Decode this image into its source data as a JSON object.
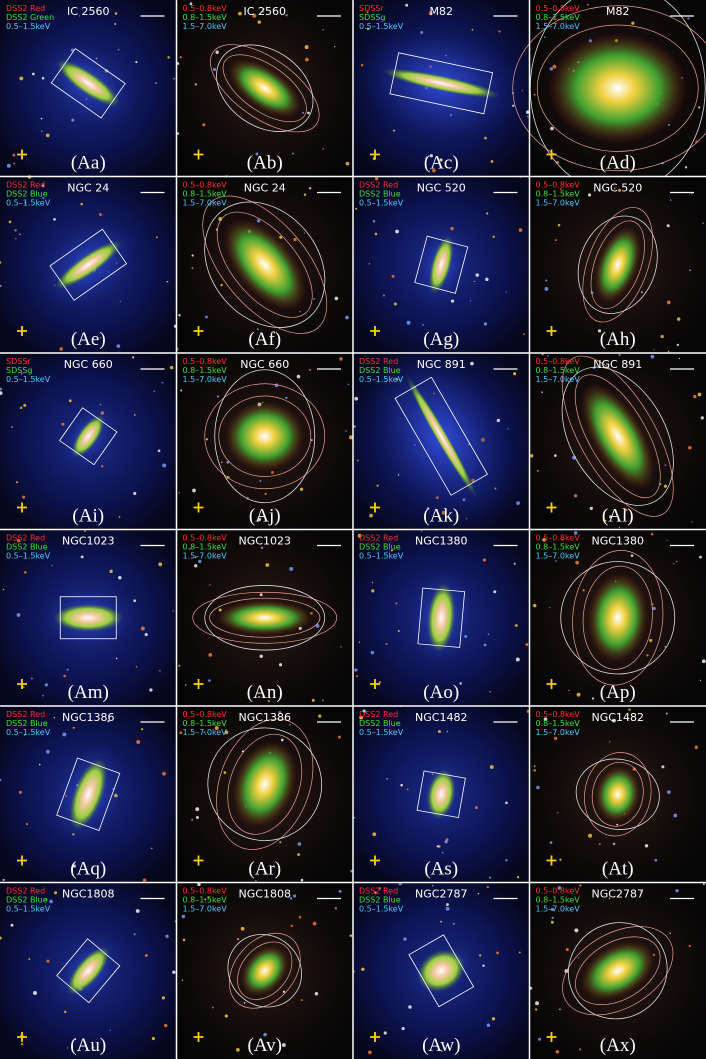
{
  "panels": [
    {
      "name": "IC 2560",
      "legend": [
        "DSS2 Red",
        "DSS2 Green",
        "0.5–1.5keV"
      ],
      "label": "(Aa)"
    },
    {
      "name": "IC 2560",
      "legend": [
        "0.5–0.8keV",
        "0.8–1.5keV",
        "1.5–7.0keV"
      ],
      "label": "(Ab)"
    },
    {
      "name": "M82",
      "legend": [
        "SDSSr",
        "SDSSg",
        "0.5–1.5keV"
      ],
      "label": "(Ac)"
    },
    {
      "name": "M82",
      "legend": [
        "0.5–0.8keV",
        "0.8–1.5keV",
        "1.5–7.0keV"
      ],
      "label": "(Ad)"
    },
    {
      "name": "NGC 24",
      "legend": [
        "DSS2 Red",
        "DSS2 Blue",
        "0.5–1.5keV"
      ],
      "label": "(Ae)"
    },
    {
      "name": "NGC 24",
      "legend": [
        "0.5–0.8keV",
        "0.8–1.5keV",
        "1.5–7.0keV"
      ],
      "label": "(Af)"
    },
    {
      "name": "NGC 520",
      "legend": [
        "DSS2 Red",
        "DSS2 Blue",
        "0.5–1.5keV"
      ],
      "label": "(Ag)"
    },
    {
      "name": "NGC 520",
      "legend": [
        "0.5–0.8keV",
        "0.8–1.5keV",
        "1.5–7.0keV"
      ],
      "label": "(Ah)"
    },
    {
      "name": "NGC 660",
      "legend": [
        "SDSSr",
        "SDSSg",
        "0.5–1.5keV"
      ],
      "label": "(Ai)"
    },
    {
      "name": "NGC 660",
      "legend": [
        "0.5–0.8keV",
        "0.8–1.5keV",
        "1.5–7.0keV"
      ],
      "label": "(Aj)"
    },
    {
      "name": "NGC 891",
      "legend": [
        "DSS2 Red",
        "DSS2 Blue",
        "0.5–1.5keV"
      ],
      "label": "(Ak)"
    },
    {
      "name": "NGC 891",
      "legend": [
        "0.5–0.8keV",
        "0.8–1.5keV",
        "1.5–7.0keV"
      ],
      "label": "(Al)"
    },
    {
      "name": "NGC1023",
      "legend": [
        "DSS2 Red",
        "DSS2 Blue",
        "0.5–1.5keV"
      ],
      "label": "(Am)"
    },
    {
      "name": "NGC1023",
      "legend": [
        "0.5–0.8keV",
        "0.8–1.5keV",
        "1.5–7.0keV"
      ],
      "label": "(An)"
    },
    {
      "name": "NGC1380",
      "legend": [
        "DSS2 Red",
        "DSS2 Blue",
        "0.5–1.5keV"
      ],
      "label": "(Ao)"
    },
    {
      "name": "NGC1380",
      "legend": [
        "0.5–0.8keV",
        "0.8–1.5keV",
        "1.5–7.0keV"
      ],
      "label": "(Ap)"
    },
    {
      "name": "NGC1386",
      "legend": [
        "DSS2 Red",
        "DSS2 Blue",
        "0.5–1.5keV"
      ],
      "label": "(Aq)"
    },
    {
      "name": "NGC1386",
      "legend": [
        "0.5–0.8keV",
        "0.8–1.5keV",
        "1.5–7.0keV"
      ],
      "label": "(Ar)"
    },
    {
      "name": "NGC1482",
      "legend": [
        "DSS2 Red",
        "DSS2 Blue",
        "0.5–1.5keV"
      ],
      "label": "(As)"
    },
    {
      "name": "NGC1482",
      "legend": [
        "0.5–0.8keV",
        "0.8–1.5keV",
        "1.5–7.0keV"
      ],
      "label": "(At)"
    },
    {
      "name": "NGC1808",
      "legend": [
        "DSS2 Red",
        "DSS2 Blue",
        "0.5–1.5keV"
      ],
      "label": "(Au)"
    },
    {
      "name": "NGC1808",
      "legend": [
        "0.5–0.8keV",
        "0.8–1.5keV",
        "1.5–7.0keV"
      ],
      "label": "(Av)"
    },
    {
      "name": "NGC2787",
      "legend": [
        "DSS2 Red",
        "DSS2 Blue",
        "0.5–1.5keV"
      ],
      "label": "(Aw)"
    },
    {
      "name": "NGC2787",
      "legend": [
        "0.5–0.8keV",
        "0.8–1.5keV",
        "1.5–7.0keV"
      ],
      "label": "(Ax)"
    }
  ]
}
